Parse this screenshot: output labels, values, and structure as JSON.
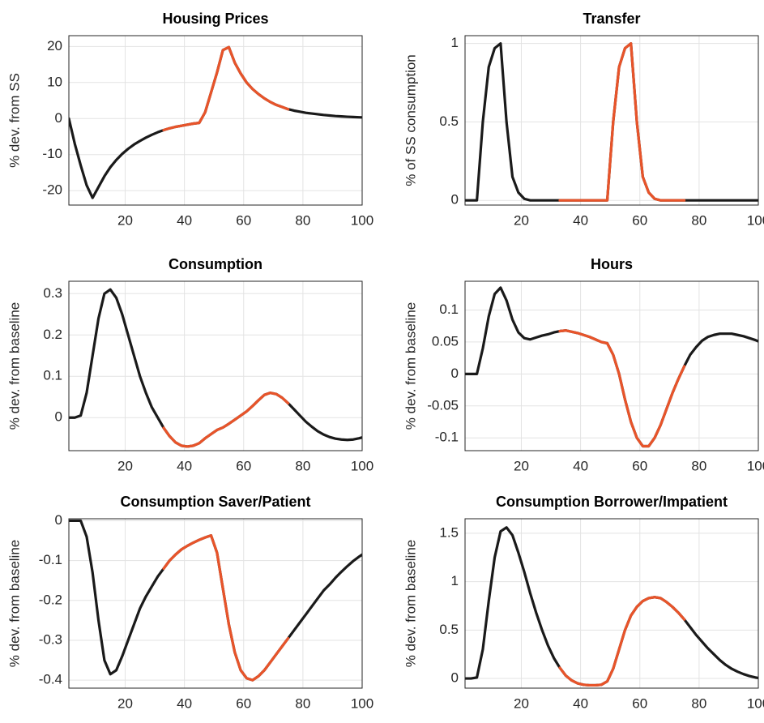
{
  "chart_data": [
    {
      "type": "line",
      "title": "Housing Prices",
      "y_label": "% dev. from SS",
      "x": [
        1,
        3,
        5,
        7,
        9,
        11,
        13,
        15,
        17,
        19,
        21,
        23,
        25,
        27,
        29,
        31,
        33,
        35,
        37,
        39,
        41,
        43,
        45,
        47,
        49,
        51,
        53,
        55,
        57,
        59,
        61,
        63,
        65,
        67,
        69,
        71,
        73,
        75,
        77,
        79,
        81,
        83,
        85,
        87,
        89,
        91,
        93,
        95,
        97,
        99,
        100
      ],
      "series": [
        {
          "color": "#1a1a1a",
          "values": [
            0,
            -7,
            -13,
            -18.5,
            -22,
            -19,
            -16,
            -13.5,
            -11.5,
            -9.8,
            -8.4,
            -7.2,
            -6.2,
            -5.3,
            -4.5,
            -3.8,
            -3.2,
            -2.7,
            -2.3,
            -2,
            -1.7,
            -1.4,
            -1.2,
            1.75,
            7.25,
            12.75,
            19,
            19.8,
            15.5,
            12.5,
            10,
            8.2,
            6.8,
            5.6,
            4.6,
            3.8,
            3.2,
            2.6,
            2.2,
            1.9,
            1.6,
            1.4,
            1.2,
            1.0,
            0.85,
            0.7,
            0.6,
            0.5,
            0.42,
            0.36,
            0.33
          ]
        },
        {
          "color": "#e8542a",
          "values": [
            null,
            null,
            null,
            null,
            null,
            null,
            null,
            null,
            null,
            null,
            null,
            null,
            null,
            null,
            null,
            null,
            -3.2,
            -2.7,
            -2.3,
            -2,
            -1.7,
            -1.4,
            -1.2,
            1.75,
            7.25,
            12.75,
            19,
            19.8,
            15.5,
            12.5,
            10,
            8.2,
            6.8,
            5.6,
            4.6,
            3.8,
            3.2,
            2.6,
            null,
            null,
            null,
            null,
            null,
            null,
            null,
            null,
            null,
            null,
            null,
            null,
            null
          ]
        }
      ],
      "xlim": [
        1,
        100
      ],
      "xticks": [
        20,
        40,
        60,
        80,
        100
      ],
      "ylim": [
        -24,
        23
      ],
      "yticks": [
        -20,
        -10,
        0,
        10,
        20
      ],
      "grid": true
    },
    {
      "type": "line",
      "title": "Transfer",
      "y_label": "% of SS consumption",
      "x": [
        1,
        3,
        5,
        7,
        9,
        11,
        13,
        15,
        17,
        19,
        21,
        23,
        25,
        27,
        29,
        31,
        33,
        35,
        37,
        39,
        41,
        43,
        45,
        47,
        49,
        51,
        53,
        55,
        57,
        59,
        61,
        63,
        65,
        67,
        69,
        71,
        73,
        75,
        77,
        79,
        81,
        83,
        85,
        87,
        89,
        91,
        93,
        95,
        97,
        99,
        100
      ],
      "series": [
        {
          "color": "#1a1a1a",
          "values": [
            0,
            0,
            0,
            0.5,
            0.85,
            0.97,
            1.0,
            0.5,
            0.15,
            0.05,
            0.01,
            0,
            0,
            0,
            0,
            0,
            0,
            0,
            0,
            0,
            0,
            0,
            0,
            0,
            0,
            0.5,
            0.85,
            0.97,
            1.0,
            0.5,
            0.15,
            0.05,
            0.01,
            0,
            0,
            0,
            0,
            0,
            0,
            0,
            0,
            0,
            0,
            0,
            0,
            0,
            0,
            0,
            0,
            0,
            0
          ]
        },
        {
          "color": "#e8542a",
          "values": [
            null,
            null,
            null,
            null,
            null,
            null,
            null,
            null,
            null,
            null,
            null,
            null,
            null,
            null,
            null,
            null,
            0,
            0,
            0,
            0,
            0,
            0,
            0,
            0,
            0,
            0.5,
            0.85,
            0.97,
            1.0,
            0.5,
            0.15,
            0.05,
            0.01,
            0,
            0,
            0,
            0,
            0,
            null,
            null,
            null,
            null,
            null,
            null,
            null,
            null,
            null,
            null,
            null,
            null,
            null
          ]
        }
      ],
      "xlim": [
        1,
        100
      ],
      "xticks": [
        20,
        40,
        60,
        80,
        100
      ],
      "ylim": [
        -0.03,
        1.05
      ],
      "yticks": [
        0,
        0.5,
        1
      ],
      "grid": true
    },
    {
      "type": "line",
      "title": "Consumption",
      "y_label": "% dev. from baseline",
      "x": [
        1,
        3,
        5,
        7,
        9,
        11,
        13,
        15,
        17,
        19,
        21,
        23,
        25,
        27,
        29,
        31,
        33,
        35,
        37,
        39,
        41,
        43,
        45,
        47,
        49,
        51,
        53,
        55,
        57,
        59,
        61,
        63,
        65,
        67,
        69,
        71,
        73,
        75,
        77,
        79,
        81,
        83,
        85,
        87,
        89,
        91,
        93,
        95,
        97,
        99,
        100
      ],
      "series": [
        {
          "color": "#1a1a1a",
          "values": [
            0,
            0,
            0.005,
            0.06,
            0.15,
            0.24,
            0.3,
            0.31,
            0.29,
            0.25,
            0.2,
            0.15,
            0.1,
            0.06,
            0.025,
            0,
            -0.025,
            -0.045,
            -0.06,
            -0.068,
            -0.07,
            -0.068,
            -0.062,
            -0.05,
            -0.04,
            -0.03,
            -0.024,
            -0.015,
            -0.005,
            0.005,
            0.015,
            0.028,
            0.042,
            0.055,
            0.06,
            0.057,
            0.048,
            0.035,
            0.02,
            0.005,
            -0.01,
            -0.022,
            -0.033,
            -0.041,
            -0.047,
            -0.051,
            -0.053,
            -0.054,
            -0.053,
            -0.05,
            -0.048
          ]
        },
        {
          "color": "#e8542a",
          "values": [
            null,
            null,
            null,
            null,
            null,
            null,
            null,
            null,
            null,
            null,
            null,
            null,
            null,
            null,
            null,
            null,
            -0.025,
            -0.045,
            -0.06,
            -0.068,
            -0.07,
            -0.068,
            -0.062,
            -0.05,
            -0.04,
            -0.03,
            -0.024,
            -0.015,
            -0.005,
            0.005,
            0.015,
            0.028,
            0.042,
            0.055,
            0.06,
            0.057,
            0.048,
            0.035,
            null,
            null,
            null,
            null,
            null,
            null,
            null,
            null,
            null,
            null,
            null,
            null,
            null
          ]
        }
      ],
      "xlim": [
        1,
        100
      ],
      "xticks": [
        20,
        40,
        60,
        80,
        100
      ],
      "ylim": [
        -0.08,
        0.33
      ],
      "yticks": [
        0,
        0.1,
        0.2,
        0.3
      ],
      "grid": true
    },
    {
      "type": "line",
      "title": "Hours",
      "y_label": "% dev. from baseline",
      "x": [
        1,
        3,
        5,
        7,
        9,
        11,
        13,
        15,
        17,
        19,
        21,
        23,
        25,
        27,
        29,
        31,
        33,
        35,
        37,
        39,
        41,
        43,
        45,
        47,
        49,
        51,
        53,
        55,
        57,
        59,
        61,
        63,
        65,
        67,
        69,
        71,
        73,
        75,
        77,
        79,
        81,
        83,
        85,
        87,
        89,
        91,
        93,
        95,
        97,
        99,
        100
      ],
      "series": [
        {
          "color": "#1a1a1a",
          "values": [
            0,
            0,
            0,
            0.04,
            0.09,
            0.125,
            0.135,
            0.115,
            0.085,
            0.065,
            0.056,
            0.054,
            0.057,
            0.06,
            0.062,
            0.065,
            0.067,
            0.068,
            0.066,
            0.064,
            0.061,
            0.058,
            0.054,
            0.05,
            0.048,
            0.03,
            0,
            -0.04,
            -0.075,
            -0.1,
            -0.113,
            -0.113,
            -0.1,
            -0.08,
            -0.055,
            -0.03,
            -0.008,
            0.012,
            0.03,
            0.042,
            0.052,
            0.058,
            0.061,
            0.063,
            0.063,
            0.063,
            0.061,
            0.059,
            0.056,
            0.053,
            0.051
          ]
        },
        {
          "color": "#e8542a",
          "values": [
            null,
            null,
            null,
            null,
            null,
            null,
            null,
            null,
            null,
            null,
            null,
            null,
            null,
            null,
            null,
            null,
            0.067,
            0.068,
            0.066,
            0.064,
            0.061,
            0.058,
            0.054,
            0.05,
            0.048,
            0.03,
            0,
            -0.04,
            -0.075,
            -0.1,
            -0.113,
            -0.113,
            -0.1,
            -0.08,
            -0.055,
            -0.03,
            -0.008,
            0.012,
            null,
            null,
            null,
            null,
            null,
            null,
            null,
            null,
            null,
            null,
            null,
            null,
            null
          ]
        }
      ],
      "xlim": [
        1,
        100
      ],
      "xticks": [
        20,
        40,
        60,
        80,
        100
      ],
      "ylim": [
        -0.12,
        0.145
      ],
      "yticks": [
        -0.1,
        -0.05,
        0,
        0.05,
        0.1
      ],
      "grid": true
    },
    {
      "type": "line",
      "title": "Consumption Saver/Patient",
      "y_label": "% dev. from baseline",
      "x": [
        1,
        3,
        5,
        7,
        9,
        11,
        13,
        15,
        17,
        19,
        21,
        23,
        25,
        27,
        29,
        31,
        33,
        35,
        37,
        39,
        41,
        43,
        45,
        47,
        49,
        51,
        53,
        55,
        57,
        59,
        61,
        63,
        65,
        67,
        69,
        71,
        73,
        75,
        77,
        79,
        81,
        83,
        85,
        87,
        89,
        91,
        93,
        95,
        97,
        99,
        100
      ],
      "series": [
        {
          "color": "#1a1a1a",
          "values": [
            0,
            0,
            0,
            -0.04,
            -0.13,
            -0.25,
            -0.35,
            -0.385,
            -0.375,
            -0.34,
            -0.3,
            -0.26,
            -0.22,
            -0.19,
            -0.165,
            -0.14,
            -0.12,
            -0.1,
            -0.085,
            -0.072,
            -0.063,
            -0.055,
            -0.048,
            -0.042,
            -0.037,
            -0.08,
            -0.17,
            -0.26,
            -0.33,
            -0.375,
            -0.395,
            -0.4,
            -0.39,
            -0.375,
            -0.355,
            -0.335,
            -0.315,
            -0.295,
            -0.275,
            -0.255,
            -0.235,
            -0.215,
            -0.195,
            -0.175,
            -0.16,
            -0.143,
            -0.128,
            -0.114,
            -0.101,
            -0.09,
            -0.085
          ]
        },
        {
          "color": "#e8542a",
          "values": [
            null,
            null,
            null,
            null,
            null,
            null,
            null,
            null,
            null,
            null,
            null,
            null,
            null,
            null,
            null,
            null,
            -0.12,
            -0.1,
            -0.085,
            -0.072,
            -0.063,
            -0.055,
            -0.048,
            -0.042,
            -0.037,
            -0.08,
            -0.17,
            -0.26,
            -0.33,
            -0.375,
            -0.395,
            -0.4,
            -0.39,
            -0.375,
            -0.355,
            -0.335,
            -0.315,
            -0.295,
            null,
            null,
            null,
            null,
            null,
            null,
            null,
            null,
            null,
            null,
            null,
            null,
            null
          ]
        }
      ],
      "xlim": [
        1,
        100
      ],
      "xticks": [
        20,
        40,
        60,
        80,
        100
      ],
      "ylim": [
        -0.42,
        0.005
      ],
      "yticks": [
        -0.4,
        -0.3,
        -0.2,
        -0.1,
        0
      ],
      "grid": true
    },
    {
      "type": "line",
      "title": "Consumption Borrower/Impatient",
      "y_label": "% dev. from baseline",
      "x": [
        1,
        3,
        5,
        7,
        9,
        11,
        13,
        15,
        17,
        19,
        21,
        23,
        25,
        27,
        29,
        31,
        33,
        35,
        37,
        39,
        41,
        43,
        45,
        47,
        49,
        51,
        53,
        55,
        57,
        59,
        61,
        63,
        65,
        67,
        69,
        71,
        73,
        75,
        77,
        79,
        81,
        83,
        85,
        87,
        89,
        91,
        93,
        95,
        97,
        99,
        100
      ],
      "series": [
        {
          "color": "#1a1a1a",
          "values": [
            0,
            0,
            0.01,
            0.3,
            0.8,
            1.25,
            1.52,
            1.56,
            1.48,
            1.3,
            1.1,
            0.88,
            0.68,
            0.5,
            0.34,
            0.21,
            0.11,
            0.03,
            -0.02,
            -0.05,
            -0.065,
            -0.07,
            -0.07,
            -0.065,
            -0.03,
            0.1,
            0.3,
            0.5,
            0.65,
            0.74,
            0.8,
            0.83,
            0.84,
            0.83,
            0.79,
            0.74,
            0.68,
            0.61,
            0.53,
            0.45,
            0.38,
            0.31,
            0.25,
            0.19,
            0.14,
            0.1,
            0.07,
            0.045,
            0.025,
            0.01,
            0.005
          ]
        },
        {
          "color": "#e8542a",
          "values": [
            null,
            null,
            null,
            null,
            null,
            null,
            null,
            null,
            null,
            null,
            null,
            null,
            null,
            null,
            null,
            null,
            0.11,
            0.03,
            -0.02,
            -0.05,
            -0.065,
            -0.07,
            -0.07,
            -0.065,
            -0.03,
            0.1,
            0.3,
            0.5,
            0.65,
            0.74,
            0.8,
            0.83,
            0.84,
            0.83,
            0.79,
            0.74,
            0.68,
            0.61,
            null,
            null,
            null,
            null,
            null,
            null,
            null,
            null,
            null,
            null,
            null,
            null,
            null
          ]
        }
      ],
      "xlim": [
        1,
        100
      ],
      "xticks": [
        20,
        40,
        60,
        80,
        100
      ],
      "ylim": [
        -0.1,
        1.65
      ],
      "yticks": [
        0,
        0.5,
        1,
        1.5
      ],
      "grid": true
    }
  ]
}
